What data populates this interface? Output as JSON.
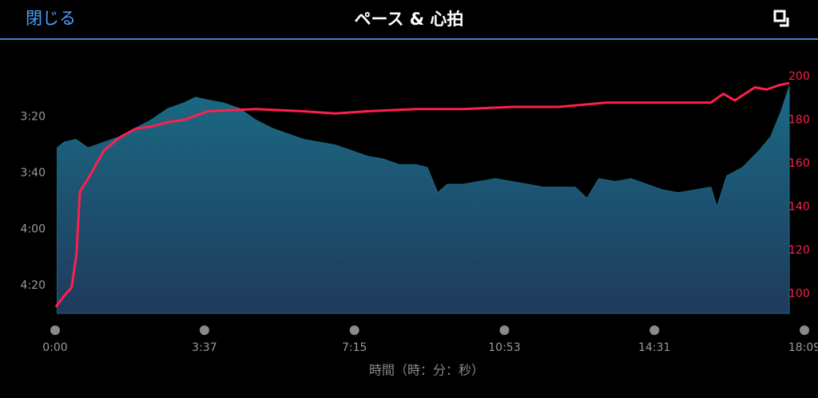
{
  "header": {
    "close": "閉じる",
    "title": "ペース & 心拍"
  },
  "chart_data": {
    "type": "area-line",
    "x_label": "時間（時：分：秒）",
    "xlim": [
      0,
      1089
    ],
    "xticks": [
      {
        "value": 0,
        "label": "0:00"
      },
      {
        "value": 217,
        "label": "3:37"
      },
      {
        "value": 435,
        "label": "7:15"
      },
      {
        "value": 653,
        "label": "10:53"
      },
      {
        "value": 871,
        "label": "14:31"
      },
      {
        "value": 1089,
        "label": "18:09"
      }
    ],
    "ylim": [
      174,
      270
    ],
    "y_inverted": true,
    "yticks": [
      {
        "value": 200,
        "label": "3:20"
      },
      {
        "value": 220,
        "label": "3:40"
      },
      {
        "value": 240,
        "label": "4:00"
      },
      {
        "value": 260,
        "label": "4:20"
      }
    ],
    "y2lim": [
      91,
      215
    ],
    "y2ticks": [
      100,
      120,
      140,
      160,
      180,
      200
    ],
    "grid": false,
    "series": [
      {
        "type": "area",
        "color": "#1a6a84",
        "x": [
          3,
          13,
          30,
          48,
          71,
          94,
          117,
          140,
          164,
          187,
          204,
          222,
          245,
          268,
          291,
          315,
          338,
          361,
          384,
          407,
          431,
          454,
          477,
          500,
          524,
          541,
          556,
          570,
          593,
          616,
          640,
          663,
          686,
          709,
          732,
          756,
          773,
          790,
          814,
          837,
          860,
          883,
          906,
          930,
          953,
          962,
          976,
          999,
          1023,
          1040,
          1055,
          1067
        ],
        "values": [
          211,
          209,
          208,
          211,
          209,
          207,
          204,
          201,
          197,
          195,
          193,
          194,
          195,
          197,
          201,
          204,
          206,
          208,
          209,
          210,
          212,
          214,
          215,
          217,
          217,
          218,
          227,
          224,
          224,
          223,
          222,
          223,
          224,
          225,
          225,
          225,
          229,
          222,
          223,
          222,
          224,
          226,
          227,
          226,
          225,
          232,
          221,
          218,
          212,
          207,
          198,
          189
        ]
      },
      {
        "type": "line",
        "axis": "y2",
        "color": "#ff1f4b",
        "x": [
          1,
          13,
          24,
          31,
          36,
          48,
          71,
          94,
          117,
          140,
          164,
          187,
          222,
          291,
          361,
          407,
          454,
          524,
          593,
          663,
          732,
          802,
          883,
          953,
          971,
          988,
          1017,
          1034,
          1052,
          1067
        ],
        "values": [
          94,
          99,
          103,
          118,
          147,
          153,
          166,
          172,
          176,
          177,
          179,
          180,
          184,
          185,
          184,
          183,
          184,
          185,
          185,
          186,
          186,
          188,
          188,
          188,
          192,
          189,
          195,
          194,
          196,
          197
        ]
      }
    ]
  }
}
